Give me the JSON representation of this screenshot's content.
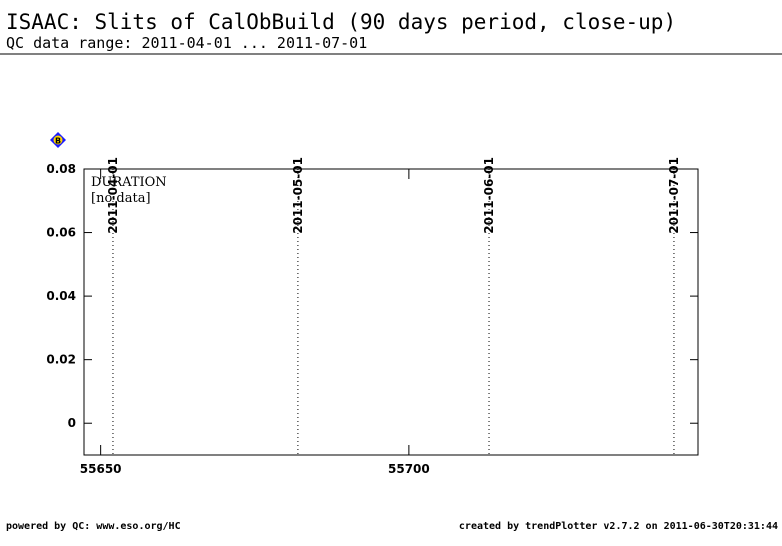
{
  "chart_data": {
    "type": "scatter",
    "title": "ISAAC: Slits of CalObBuild (90 days period, close-up)",
    "subtitle": "QC data range: 2011-04-01 ... 2011-07-01",
    "badge": "B",
    "panel_label": "DURATION",
    "annotation": "[no data]",
    "xlim": [
      55647.3,
      55746.9
    ],
    "xticks": [
      55650,
      55700
    ],
    "ylim": [
      -0.01,
      0.08
    ],
    "yticks": [
      0,
      0.02,
      0.04,
      0.06,
      0.08
    ],
    "date_markers": [
      {
        "x": 55652,
        "label": "2011-04-01"
      },
      {
        "x": 55682,
        "label": "2011-05-01"
      },
      {
        "x": 55713,
        "label": "2011-06-01"
      },
      {
        "x": 55743,
        "label": "2011-07-01"
      }
    ],
    "footer_left": "powered by QC: www.eso.org/HC",
    "footer_right": "created by trendPlotter v2.7.2 on 2011-06-30T20:31:44"
  }
}
